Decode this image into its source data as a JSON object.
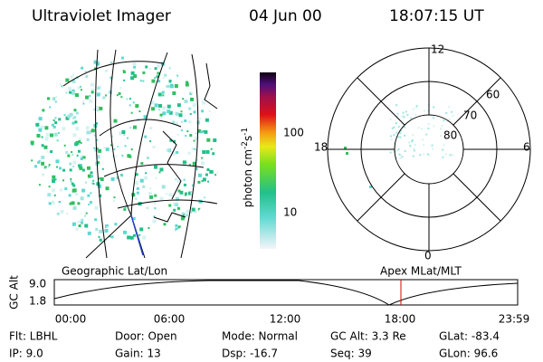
{
  "header": {
    "instrument": "Ultraviolet Imager",
    "date": "04 Jun 00",
    "time": "18:07:15 UT"
  },
  "colorbar": {
    "label": {
      "unit": "photon cm",
      "exp1": "-2",
      "mid": "s",
      "exp2": "-1"
    },
    "ticks": [
      "100",
      "10"
    ]
  },
  "polar": {
    "labels": {
      "top": "12",
      "right": "6",
      "bottom": "0",
      "left": "18",
      "lat60": "60",
      "lat70": "70",
      "lat80": "80"
    }
  },
  "panels": {
    "left": "Geographic Lat/Lon",
    "right": "Apex MLat/MLT"
  },
  "orbit": {
    "axis_label": "GC Alt",
    "ymax": "9.0",
    "ymin": "1.8",
    "times": [
      "00:00",
      "06:00",
      "12:00",
      "18:00",
      "23:59"
    ]
  },
  "status": {
    "rows": [
      [
        "Flt: LBHL",
        "Door: Open",
        "Mode: Normal",
        "GC Alt: 3.3 Re",
        "GLat: -83.4"
      ],
      [
        "IP: 9.0",
        "Gain: 13",
        "Dsp: -16.7",
        "Seq: 39",
        "GLon: 96.6"
      ]
    ]
  }
}
